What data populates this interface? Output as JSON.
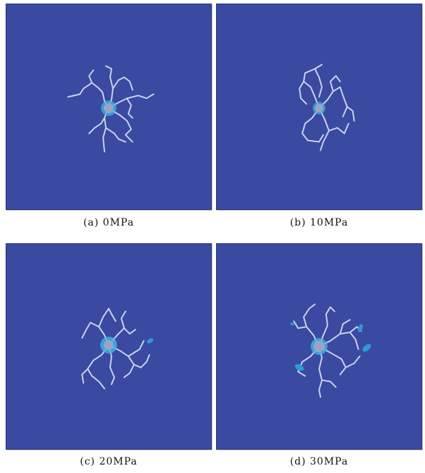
{
  "panels": [
    {
      "id": "a",
      "caption": "(a) 0MPa"
    },
    {
      "id": "b",
      "caption": "(b) 10MPa"
    },
    {
      "id": "c",
      "caption": "(c) 20MPa"
    },
    {
      "id": "d",
      "caption": "(d) 30MPa"
    }
  ],
  "colors": {
    "background": "#3a4aa0",
    "crack": "#c9d3ec",
    "core": "#9aa4c4",
    "halo": "#3fb7e6",
    "damage": "#2b9ad6"
  }
}
